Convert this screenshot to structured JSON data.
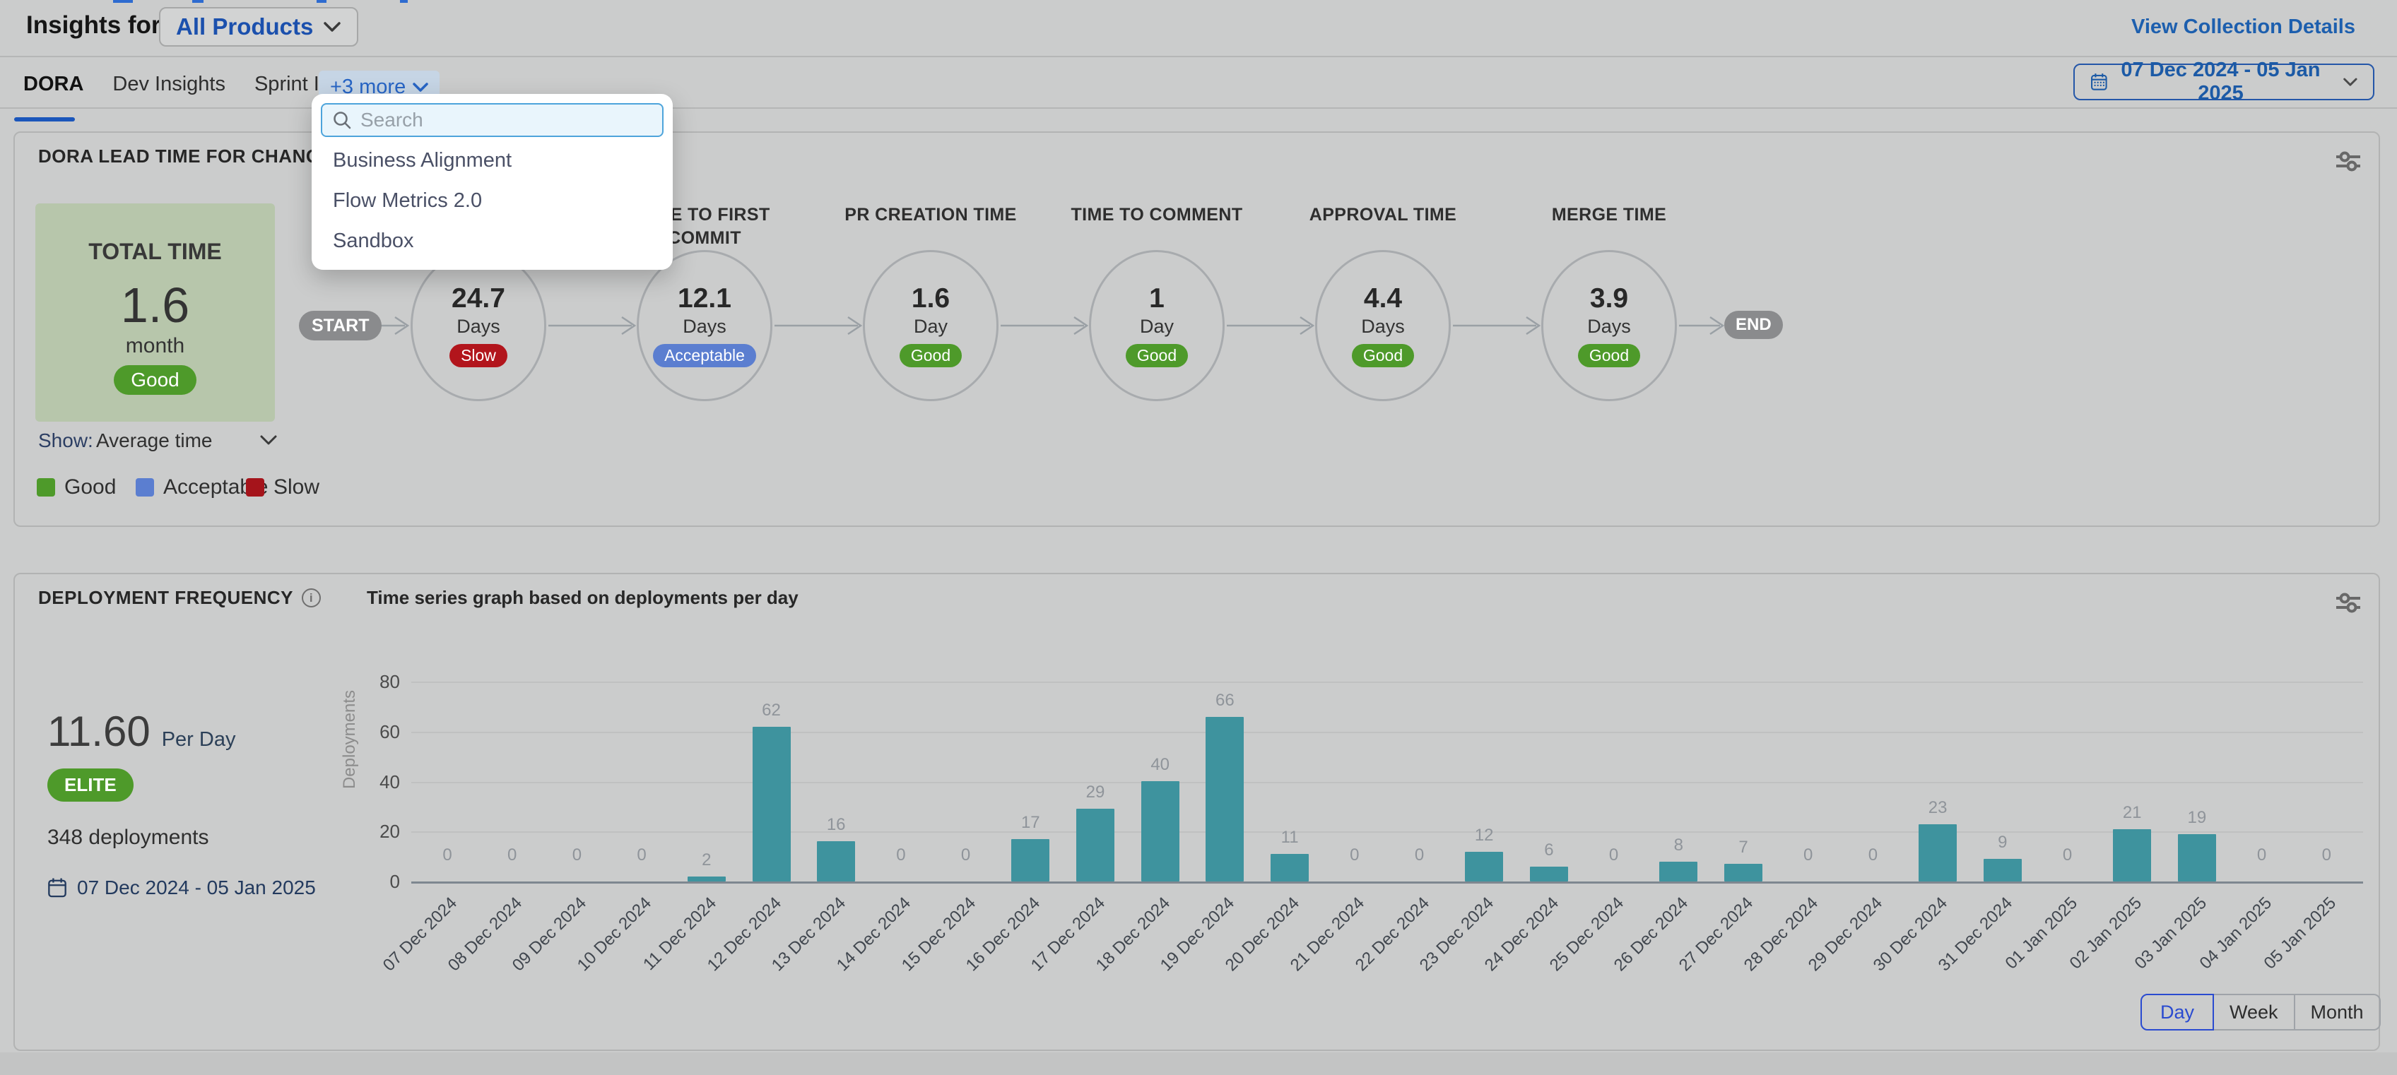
{
  "header": {
    "title": "Insights for",
    "product_selector": "All Products",
    "view_collection_details": "View Collection Details"
  },
  "tabs": {
    "items": [
      {
        "label": "DORA",
        "active": true
      },
      {
        "label": "Dev Insights",
        "active": false
      },
      {
        "label": "Sprint Insights",
        "active": false
      }
    ],
    "more_label": "+3 more",
    "date_range": "07 Dec 2024 - 05 Jan 2025"
  },
  "more_dropdown": {
    "search_placeholder": "Search",
    "items": [
      "Business Alignment",
      "Flow Metrics 2.0",
      "Sandbox"
    ]
  },
  "lead_time_card": {
    "title": "DORA LEAD TIME FOR CHANGES REP",
    "total": {
      "label": "TOTAL TIME",
      "value": "1.6",
      "unit": "month",
      "status": "Good"
    },
    "start_label": "START",
    "end_label": "END",
    "stages": [
      {
        "label": "",
        "value": "24.7",
        "unit": "Days",
        "status": "Slow"
      },
      {
        "label": "TIME TO FIRST COMMIT",
        "value": "12.1",
        "unit": "Days",
        "status": "Acceptable"
      },
      {
        "label": "PR CREATION TIME",
        "value": "1.6",
        "unit": "Day",
        "status": "Good"
      },
      {
        "label": "TIME TO COMMENT",
        "value": "1",
        "unit": "Day",
        "status": "Good"
      },
      {
        "label": "APPROVAL TIME",
        "value": "4.4",
        "unit": "Days",
        "status": "Good"
      },
      {
        "label": "MERGE TIME",
        "value": "3.9",
        "unit": "Days",
        "status": "Good"
      }
    ],
    "show_label": "Show:",
    "show_value": "Average time",
    "status_colors": {
      "Good": "#4e9a2a",
      "Acceptable": "#5b7ed0",
      "Slow": "#b2151c"
    },
    "legend": [
      {
        "label": "Good",
        "color": "#4e9a2a"
      },
      {
        "label": "Acceptable",
        "color": "#5b7ed0"
      },
      {
        "label": "Slow",
        "color": "#a5141b"
      }
    ]
  },
  "deployment_card": {
    "title": "DEPLOYMENT FREQUENCY",
    "info_glyph": "i",
    "subtitle": "Time series graph based on deployments per day",
    "rate_value": "11.60",
    "rate_unit": "Per Day",
    "tier": "ELITE",
    "tier_color": "#4e9a2a",
    "total": "348 deployments",
    "date_range": "07 Dec 2024 - 05 Jan 2025",
    "granularity": [
      {
        "label": "Day",
        "active": true
      },
      {
        "label": "Week",
        "active": false
      },
      {
        "label": "Month",
        "active": false
      }
    ]
  },
  "chart_data": {
    "type": "bar",
    "title": "Time series graph based on deployments per day",
    "xlabel": "",
    "ylabel": "Deployments",
    "ylim": [
      0,
      80
    ],
    "yticks": [
      0,
      20,
      40,
      60,
      80
    ],
    "grid": true,
    "bar_color": "#3e939e",
    "categories": [
      "07 Dec 2024",
      "08 Dec 2024",
      "09 Dec 2024",
      "10 Dec 2024",
      "11 Dec 2024",
      "12 Dec 2024",
      "13 Dec 2024",
      "14 Dec 2024",
      "15 Dec 2024",
      "16 Dec 2024",
      "17 Dec 2024",
      "18 Dec 2024",
      "19 Dec 2024",
      "20 Dec 2024",
      "21 Dec 2024",
      "22 Dec 2024",
      "23 Dec 2024",
      "24 Dec 2024",
      "25 Dec 2024",
      "26 Dec 2024",
      "27 Dec 2024",
      "28 Dec 2024",
      "29 Dec 2024",
      "30 Dec 2024",
      "31 Dec 2024",
      "01 Jan 2025",
      "02 Jan 2025",
      "03 Jan 2025",
      "04 Jan 2025",
      "05 Jan 2025"
    ],
    "values": [
      0,
      0,
      0,
      0,
      2,
      62,
      16,
      0,
      0,
      17,
      29,
      40,
      66,
      11,
      0,
      0,
      12,
      6,
      0,
      8,
      7,
      0,
      0,
      23,
      9,
      0,
      21,
      19,
      0,
      0
    ]
  },
  "icons": {
    "search": "search-icon",
    "calendar": "calendar-icon",
    "chevron_down": "chevron-down-icon",
    "settings": "chart-settings-icon",
    "info": "info-icon"
  }
}
